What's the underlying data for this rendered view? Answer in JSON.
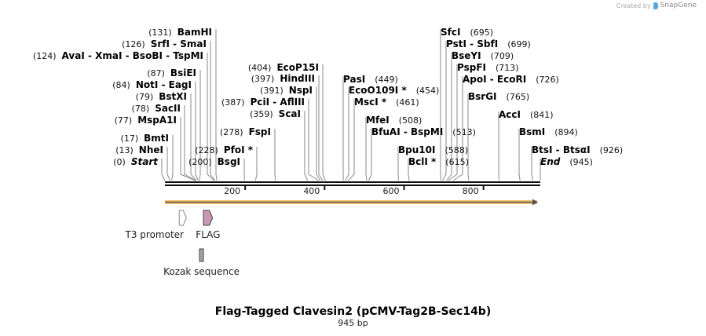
{
  "credit": {
    "prefix": "Created by",
    "brand": "SnapGene"
  },
  "map": {
    "length": 945,
    "ticks": [
      200,
      400,
      600,
      800
    ],
    "sites": [
      {
        "name": "Start",
        "pos": 0,
        "italic": true
      },
      {
        "name": "NheI",
        "pos": 13
      },
      {
        "name": "BmtI",
        "pos": 17
      },
      {
        "name": "MspA1I",
        "pos": 77
      },
      {
        "name": "SacII",
        "pos": 78
      },
      {
        "name": "BstXI",
        "pos": 79
      },
      {
        "name": "NotI  - EagI",
        "pos": 84
      },
      {
        "name": "BsiEI",
        "pos": 87
      },
      {
        "name": "AvaI  - XmaI  - BsoBI  - TspMI",
        "pos": 124
      },
      {
        "name": "SrfI  - SmaI",
        "pos": 126
      },
      {
        "name": "BamHI",
        "pos": 131
      },
      {
        "name": "BsgI",
        "pos": 200
      },
      {
        "name": "PfoI *",
        "pos": 228
      },
      {
        "name": "FspI",
        "pos": 278
      },
      {
        "name": "ScaI",
        "pos": 359
      },
      {
        "name": "PciI  - AflIII",
        "pos": 387
      },
      {
        "name": "NspI",
        "pos": 391
      },
      {
        "name": "HindIII",
        "pos": 397
      },
      {
        "name": "EcoP15I",
        "pos": 404
      },
      {
        "name": "PasI",
        "pos": 449
      },
      {
        "name": "EcoO109I *",
        "pos": 454
      },
      {
        "name": "MscI *",
        "pos": 461
      },
      {
        "name": "MfeI",
        "pos": 508
      },
      {
        "name": "BfuAI  - BspMI",
        "pos": 513
      },
      {
        "name": "Bpu10I",
        "pos": 588
      },
      {
        "name": "BclI *",
        "pos": 615
      },
      {
        "name": "SfcI",
        "pos": 695
      },
      {
        "name": "PstI  - SbfI",
        "pos": 699
      },
      {
        "name": "BseYI",
        "pos": 709
      },
      {
        "name": "PspFI",
        "pos": 713
      },
      {
        "name": "ApoI  - EcoRI",
        "pos": 726
      },
      {
        "name": "BsrGI",
        "pos": 765
      },
      {
        "name": "AccI",
        "pos": 841
      },
      {
        "name": "BsmI",
        "pos": 894
      },
      {
        "name": "BtsI  - BtsαI",
        "pos": 926
      },
      {
        "name": "End",
        "pos": 945,
        "italic": true
      }
    ],
    "features": [
      {
        "name": "T3 promoter",
        "start": 36,
        "end": 54,
        "color": "#ffffff"
      },
      {
        "name": "FLAG",
        "start": 97,
        "end": 120,
        "color": "#c897b4"
      },
      {
        "name": "Kozak sequence",
        "start": 87,
        "end": 97,
        "color": "#a0a4a8"
      }
    ],
    "backbone_color": "#f5c46a"
  },
  "title": "Flag-Tagged Clavesin2 (pCMV-Tag2B-Sec14b)",
  "size": "945 bp"
}
